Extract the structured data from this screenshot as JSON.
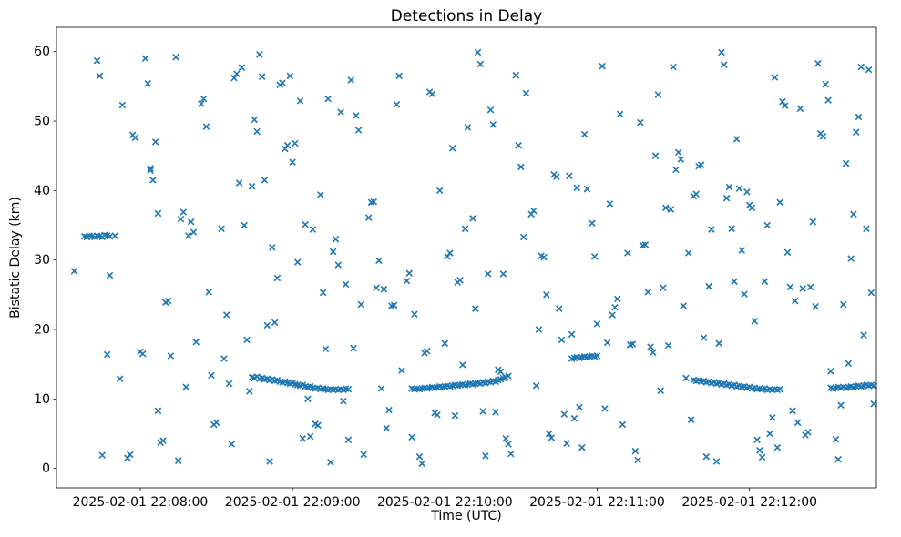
{
  "chart_data": {
    "type": "scatter",
    "title": "Detections in Delay",
    "xlabel": "Time (UTC)",
    "ylabel": "Bistatic Delay (km)",
    "marker": "x",
    "marker_color": "#1f77b4",
    "grid": false,
    "x_axis_seconds_origin": "2025-02-01 22:07:00",
    "xlim": [
      27,
      350
    ],
    "ylim": [
      -2.8,
      63.5
    ],
    "y_ticks": [
      0,
      10,
      20,
      30,
      40,
      50,
      60
    ],
    "x_ticks": [
      {
        "t": 60,
        "label": "2025-02-01 22:08:00"
      },
      {
        "t": 120,
        "label": "2025-02-01 22:09:00"
      },
      {
        "t": 180,
        "label": "2025-02-01 22:10:00"
      },
      {
        "t": 240,
        "label": "2025-02-01 22:11:00"
      },
      {
        "t": 300,
        "label": "2025-02-01 22:12:00"
      }
    ],
    "points": [
      [
        34,
        28.4
      ],
      [
        38,
        33.4
      ],
      [
        39,
        33.3
      ],
      [
        40,
        33.5
      ],
      [
        41,
        33.4
      ],
      [
        42,
        33.3
      ],
      [
        43,
        33.5
      ],
      [
        44,
        33.4
      ],
      [
        45,
        33.3
      ],
      [
        46,
        33.6
      ],
      [
        47,
        33.5
      ],
      [
        48,
        33.4
      ],
      [
        50,
        33.5
      ],
      [
        43,
        58.7
      ],
      [
        44,
        56.5
      ],
      [
        45,
        1.9
      ],
      [
        47,
        16.4
      ],
      [
        48,
        27.8
      ],
      [
        52,
        12.9
      ],
      [
        53,
        52.3
      ],
      [
        55,
        1.5
      ],
      [
        56,
        2.0
      ],
      [
        57,
        48.0
      ],
      [
        58,
        47.6
      ],
      [
        60,
        16.8
      ],
      [
        61,
        16.5
      ],
      [
        62,
        59.0
      ],
      [
        63,
        55.4
      ],
      [
        64,
        42.9
      ],
      [
        64,
        43.2
      ],
      [
        65,
        41.5
      ],
      [
        66,
        47.0
      ],
      [
        67,
        36.7
      ],
      [
        67,
        8.3
      ],
      [
        68,
        3.7
      ],
      [
        69,
        4.0
      ],
      [
        70,
        23.9
      ],
      [
        71,
        24.1
      ],
      [
        72,
        16.2
      ],
      [
        74,
        59.2
      ],
      [
        75,
        1.1
      ],
      [
        76,
        35.9
      ],
      [
        77,
        36.9
      ],
      [
        78,
        11.7
      ],
      [
        79,
        33.5
      ],
      [
        80,
        35.5
      ],
      [
        81,
        34.0
      ],
      [
        82,
        18.2
      ],
      [
        84,
        52.5
      ],
      [
        85,
        53.2
      ],
      [
        86,
        49.2
      ],
      [
        87,
        25.4
      ],
      [
        88,
        13.4
      ],
      [
        89,
        6.3
      ],
      [
        90,
        6.6
      ],
      [
        92,
        34.5
      ],
      [
        93,
        15.8
      ],
      [
        94,
        22.1
      ],
      [
        95,
        12.2
      ],
      [
        96,
        3.5
      ],
      [
        97,
        56.2
      ],
      [
        98,
        56.8
      ],
      [
        99,
        41.1
      ],
      [
        100,
        57.7
      ],
      [
        101,
        35.0
      ],
      [
        102,
        18.5
      ],
      [
        103,
        11.1
      ],
      [
        104,
        40.6
      ],
      [
        105,
        50.2
      ],
      [
        104,
        13.1
      ],
      [
        105,
        13.0
      ],
      [
        106,
        13.2
      ],
      [
        107,
        12.9
      ],
      [
        108,
        13.0
      ],
      [
        109,
        12.8
      ],
      [
        110,
        12.9
      ],
      [
        111,
        12.7
      ],
      [
        112,
        12.8
      ],
      [
        113,
        12.6
      ],
      [
        114,
        12.7
      ],
      [
        115,
        12.5
      ],
      [
        116,
        12.4
      ],
      [
        117,
        12.5
      ],
      [
        118,
        12.3
      ],
      [
        119,
        12.2
      ],
      [
        120,
        12.3
      ],
      [
        121,
        12.1
      ],
      [
        122,
        12.0
      ],
      [
        123,
        11.9
      ],
      [
        124,
        12.0
      ],
      [
        125,
        11.8
      ],
      [
        126,
        11.7
      ],
      [
        127,
        11.8
      ],
      [
        128,
        11.6
      ],
      [
        129,
        11.5
      ],
      [
        130,
        11.6
      ],
      [
        131,
        11.4
      ],
      [
        132,
        11.5
      ],
      [
        133,
        11.4
      ],
      [
        134,
        11.3
      ],
      [
        135,
        11.4
      ],
      [
        136,
        11.3
      ],
      [
        137,
        11.4
      ],
      [
        138,
        11.3
      ],
      [
        139,
        11.4
      ],
      [
        140,
        11.3
      ],
      [
        141,
        11.5
      ],
      [
        142,
        11.4
      ],
      [
        106,
        48.5
      ],
      [
        107,
        59.6
      ],
      [
        108,
        56.4
      ],
      [
        109,
        41.5
      ],
      [
        110,
        20.6
      ],
      [
        111,
        1.0
      ],
      [
        112,
        31.8
      ],
      [
        113,
        21.0
      ],
      [
        114,
        27.4
      ],
      [
        115,
        55.2
      ],
      [
        116,
        55.5
      ],
      [
        117,
        46.0
      ],
      [
        118,
        46.5
      ],
      [
        119,
        56.5
      ],
      [
        120,
        44.1
      ],
      [
        121,
        46.8
      ],
      [
        122,
        29.7
      ],
      [
        123,
        52.9
      ],
      [
        124,
        4.3
      ],
      [
        125,
        35.1
      ],
      [
        126,
        10.0
      ],
      [
        127,
        4.6
      ],
      [
        128,
        34.4
      ],
      [
        129,
        6.4
      ],
      [
        130,
        6.2
      ],
      [
        131,
        39.4
      ],
      [
        132,
        25.3
      ],
      [
        133,
        17.2
      ],
      [
        134,
        53.2
      ],
      [
        135,
        0.9
      ],
      [
        136,
        31.2
      ],
      [
        137,
        33.0
      ],
      [
        138,
        29.3
      ],
      [
        139,
        51.3
      ],
      [
        140,
        9.7
      ],
      [
        141,
        26.5
      ],
      [
        142,
        4.1
      ],
      [
        143,
        55.9
      ],
      [
        144,
        17.3
      ],
      [
        145,
        50.8
      ],
      [
        146,
        48.7
      ],
      [
        147,
        23.6
      ],
      [
        148,
        2.0
      ],
      [
        150,
        36.1
      ],
      [
        151,
        38.3
      ],
      [
        152,
        38.4
      ],
      [
        153,
        26.0
      ],
      [
        154,
        29.9
      ],
      [
        155,
        11.5
      ],
      [
        156,
        25.8
      ],
      [
        157,
        5.8
      ],
      [
        158,
        8.4
      ],
      [
        159,
        23.4
      ],
      [
        160,
        23.5
      ],
      [
        161,
        52.4
      ],
      [
        162,
        56.5
      ],
      [
        163,
        14.1
      ],
      [
        165,
        27.0
      ],
      [
        166,
        28.1
      ],
      [
        167,
        4.5
      ],
      [
        168,
        22.2
      ],
      [
        167,
        11.5
      ],
      [
        168,
        11.4
      ],
      [
        169,
        11.5
      ],
      [
        170,
        11.4
      ],
      [
        171,
        11.5
      ],
      [
        172,
        11.6
      ],
      [
        173,
        11.5
      ],
      [
        174,
        11.6
      ],
      [
        175,
        11.7
      ],
      [
        176,
        11.6
      ],
      [
        177,
        11.7
      ],
      [
        178,
        11.8
      ],
      [
        179,
        11.7
      ],
      [
        180,
        11.8
      ],
      [
        181,
        11.9
      ],
      [
        182,
        11.8
      ],
      [
        183,
        11.9
      ],
      [
        184,
        12.0
      ],
      [
        185,
        11.9
      ],
      [
        186,
        12.0
      ],
      [
        187,
        12.1
      ],
      [
        188,
        12.0
      ],
      [
        189,
        12.1
      ],
      [
        190,
        12.2
      ],
      [
        191,
        12.1
      ],
      [
        192,
        12.2
      ],
      [
        193,
        12.3
      ],
      [
        194,
        12.2
      ],
      [
        195,
        12.4
      ],
      [
        196,
        12.3
      ],
      [
        197,
        12.5
      ],
      [
        198,
        12.4
      ],
      [
        199,
        12.6
      ],
      [
        200,
        12.5
      ],
      [
        201,
        12.7
      ],
      [
        202,
        12.8
      ],
      [
        203,
        13.0
      ],
      [
        204,
        13.1
      ],
      [
        205,
        13.3
      ],
      [
        170,
        1.7
      ],
      [
        171,
        0.7
      ],
      [
        172,
        16.6
      ],
      [
        173,
        16.9
      ],
      [
        174,
        54.2
      ],
      [
        175,
        53.9
      ],
      [
        176,
        8.0
      ],
      [
        177,
        7.7
      ],
      [
        178,
        40.0
      ],
      [
        180,
        18.0
      ],
      [
        181,
        30.5
      ],
      [
        182,
        31.0
      ],
      [
        183,
        46.1
      ],
      [
        184,
        7.6
      ],
      [
        185,
        26.8
      ],
      [
        186,
        27.1
      ],
      [
        187,
        14.9
      ],
      [
        188,
        34.5
      ],
      [
        189,
        49.1
      ],
      [
        191,
        36.0
      ],
      [
        192,
        23.0
      ],
      [
        193,
        59.9
      ],
      [
        194,
        58.2
      ],
      [
        195,
        8.2
      ],
      [
        196,
        1.8
      ],
      [
        197,
        28.0
      ],
      [
        198,
        51.6
      ],
      [
        199,
        49.5
      ],
      [
        200,
        8.1
      ],
      [
        201,
        14.2
      ],
      [
        202,
        13.9
      ],
      [
        203,
        28.0
      ],
      [
        204,
        4.3
      ],
      [
        205,
        3.5
      ],
      [
        206,
        2.1
      ],
      [
        208,
        56.6
      ],
      [
        209,
        46.5
      ],
      [
        210,
        43.4
      ],
      [
        211,
        33.3
      ],
      [
        212,
        54.0
      ],
      [
        214,
        36.6
      ],
      [
        215,
        37.1
      ],
      [
        216,
        11.9
      ],
      [
        217,
        20.0
      ],
      [
        218,
        30.6
      ],
      [
        219,
        30.4
      ],
      [
        220,
        25.0
      ],
      [
        221,
        5.0
      ],
      [
        222,
        4.4
      ],
      [
        223,
        42.3
      ],
      [
        224,
        42.0
      ],
      [
        225,
        23.0
      ],
      [
        226,
        18.5
      ],
      [
        227,
        7.8
      ],
      [
        228,
        3.6
      ],
      [
        229,
        42.1
      ],
      [
        230,
        19.3
      ],
      [
        231,
        7.2
      ],
      [
        232,
        40.4
      ],
      [
        233,
        8.8
      ],
      [
        234,
        3.0
      ],
      [
        235,
        48.1
      ],
      [
        236,
        40.2
      ],
      [
        230,
        15.8
      ],
      [
        231,
        15.9
      ],
      [
        232,
        16.0
      ],
      [
        233,
        15.9
      ],
      [
        234,
        16.0
      ],
      [
        235,
        16.1
      ],
      [
        236,
        16.0
      ],
      [
        237,
        16.1
      ],
      [
        238,
        16.2
      ],
      [
        239,
        16.1
      ],
      [
        240,
        16.2
      ],
      [
        238,
        35.3
      ],
      [
        239,
        30.5
      ],
      [
        240,
        20.8
      ],
      [
        242,
        57.9
      ],
      [
        243,
        8.6
      ],
      [
        244,
        18.1
      ],
      [
        245,
        38.1
      ],
      [
        246,
        22.1
      ],
      [
        247,
        23.2
      ],
      [
        248,
        24.4
      ],
      [
        249,
        51.0
      ],
      [
        250,
        6.3
      ],
      [
        252,
        31.0
      ],
      [
        253,
        17.8
      ],
      [
        254,
        17.9
      ],
      [
        255,
        2.5
      ],
      [
        256,
        1.2
      ],
      [
        257,
        49.8
      ],
      [
        258,
        32.1
      ],
      [
        259,
        32.2
      ],
      [
        260,
        25.4
      ],
      [
        261,
        17.5
      ],
      [
        262,
        16.7
      ],
      [
        263,
        45.0
      ],
      [
        264,
        53.8
      ],
      [
        265,
        11.2
      ],
      [
        266,
        26.0
      ],
      [
        267,
        37.5
      ],
      [
        268,
        17.7
      ],
      [
        269,
        37.3
      ],
      [
        270,
        57.8
      ],
      [
        271,
        43.0
      ],
      [
        272,
        45.5
      ],
      [
        273,
        44.5
      ],
      [
        274,
        23.4
      ],
      [
        275,
        13.0
      ],
      [
        276,
        31.0
      ],
      [
        277,
        7.0
      ],
      [
        278,
        39.2
      ],
      [
        279,
        39.5
      ],
      [
        280,
        43.5
      ],
      [
        281,
        43.7
      ],
      [
        282,
        18.8
      ],
      [
        283,
        1.7
      ],
      [
        284,
        26.2
      ],
      [
        285,
        34.4
      ],
      [
        278,
        12.7
      ],
      [
        279,
        12.6
      ],
      [
        280,
        12.7
      ],
      [
        281,
        12.5
      ],
      [
        282,
        12.6
      ],
      [
        283,
        12.4
      ],
      [
        284,
        12.5
      ],
      [
        285,
        12.3
      ],
      [
        286,
        12.4
      ],
      [
        287,
        12.2
      ],
      [
        288,
        12.3
      ],
      [
        289,
        12.1
      ],
      [
        290,
        12.2
      ],
      [
        291,
        12.0
      ],
      [
        292,
        12.1
      ],
      [
        293,
        11.9
      ],
      [
        294,
        12.0
      ],
      [
        295,
        11.8
      ],
      [
        296,
        11.9
      ],
      [
        297,
        11.7
      ],
      [
        298,
        11.8
      ],
      [
        299,
        11.6
      ],
      [
        300,
        11.7
      ],
      [
        301,
        11.5
      ],
      [
        302,
        11.6
      ],
      [
        303,
        11.4
      ],
      [
        304,
        11.5
      ],
      [
        305,
        11.4
      ],
      [
        306,
        11.5
      ],
      [
        307,
        11.3
      ],
      [
        308,
        11.4
      ],
      [
        309,
        11.3
      ],
      [
        310,
        11.4
      ],
      [
        311,
        11.3
      ],
      [
        312,
        11.4
      ],
      [
        287,
        1.0
      ],
      [
        288,
        18.0
      ],
      [
        289,
        59.9
      ],
      [
        290,
        58.1
      ],
      [
        291,
        38.9
      ],
      [
        292,
        40.5
      ],
      [
        293,
        34.5
      ],
      [
        294,
        26.9
      ],
      [
        295,
        47.4
      ],
      [
        296,
        40.3
      ],
      [
        297,
        31.4
      ],
      [
        298,
        25.1
      ],
      [
        299,
        39.8
      ],
      [
        300,
        37.9
      ],
      [
        301,
        37.5
      ],
      [
        302,
        21.2
      ],
      [
        303,
        4.1
      ],
      [
        304,
        2.6
      ],
      [
        305,
        1.6
      ],
      [
        306,
        26.9
      ],
      [
        307,
        35.0
      ],
      [
        308,
        5.0
      ],
      [
        309,
        7.3
      ],
      [
        310,
        56.3
      ],
      [
        311,
        3.0
      ],
      [
        312,
        38.3
      ],
      [
        313,
        52.8
      ],
      [
        314,
        52.2
      ],
      [
        315,
        31.1
      ],
      [
        316,
        26.1
      ],
      [
        317,
        8.3
      ],
      [
        318,
        24.1
      ],
      [
        319,
        6.6
      ],
      [
        320,
        51.8
      ],
      [
        321,
        25.9
      ],
      [
        322,
        4.8
      ],
      [
        323,
        5.2
      ],
      [
        324,
        26.1
      ],
      [
        325,
        35.5
      ],
      [
        326,
        23.3
      ],
      [
        327,
        58.3
      ],
      [
        328,
        48.2
      ],
      [
        329,
        47.8
      ],
      [
        330,
        55.3
      ],
      [
        331,
        53.0
      ],
      [
        332,
        14.0
      ],
      [
        334,
        4.2
      ],
      [
        335,
        1.3
      ],
      [
        336,
        9.1
      ],
      [
        337,
        23.6
      ],
      [
        338,
        43.9
      ],
      [
        339,
        15.1
      ],
      [
        340,
        30.2
      ],
      [
        341,
        36.6
      ],
      [
        342,
        48.4
      ],
      [
        343,
        50.6
      ],
      [
        344,
        57.8
      ],
      [
        345,
        19.2
      ],
      [
        346,
        34.5
      ],
      [
        347,
        57.4
      ],
      [
        348,
        25.3
      ],
      [
        349,
        9.3
      ],
      [
        332,
        11.6
      ],
      [
        333,
        11.5
      ],
      [
        334,
        11.6
      ],
      [
        335,
        11.7
      ],
      [
        336,
        11.6
      ],
      [
        337,
        11.7
      ],
      [
        338,
        11.6
      ],
      [
        339,
        11.7
      ],
      [
        340,
        11.8
      ],
      [
        341,
        11.7
      ],
      [
        342,
        11.8
      ],
      [
        343,
        11.9
      ],
      [
        344,
        11.8
      ],
      [
        345,
        11.9
      ],
      [
        346,
        12.0
      ],
      [
        347,
        11.9
      ],
      [
        348,
        12.0
      ],
      [
        349,
        11.9
      ]
    ]
  }
}
